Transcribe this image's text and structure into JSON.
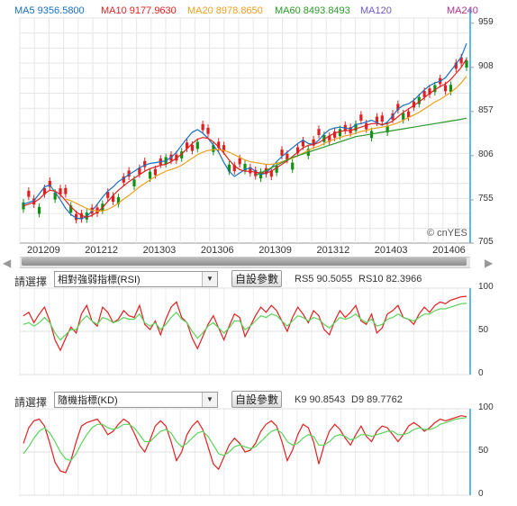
{
  "legend": [
    {
      "label": "MA5 9356.5800",
      "color": "#1a6fc0"
    },
    {
      "label": "MA10 9177.9630",
      "color": "#e02020"
    },
    {
      "label": "MA20 8978.8650",
      "color": "#f0a020"
    },
    {
      "label": "MA60 8493.8493",
      "color": "#2a9a2a"
    },
    {
      "label": "MA120",
      "color": "#6a5acd"
    },
    {
      "label": "MA240",
      "color": "#b03090"
    }
  ],
  "watermark": "© cnYES",
  "scroll": {
    "left_arrow": "◀",
    "right_arrow": "▶"
  },
  "panel1": {
    "label": "請選擇",
    "selected": "相對強弱指標(RSI)",
    "button": "自設參數",
    "value1": "RS5 90.5055",
    "value2": "RS10 82.3966"
  },
  "panel2": {
    "label": "請選擇",
    "selected": "隨機指標(KD)",
    "button": "自設參數",
    "value1": "K9 90.8543",
    "value2": "D9 89.7762"
  },
  "chart_data": [
    {
      "type": "candlestick",
      "y_ticks": [
        "959",
        "908",
        "857",
        "806",
        "755",
        "705"
      ],
      "ylim": [
        705,
        959
      ],
      "x_ticks": [
        "201209",
        "201212",
        "201303",
        "201306",
        "201309",
        "201312",
        "201403",
        "201406"
      ],
      "grid": true,
      "series": [
        {
          "name": "MA5",
          "values": [
            7500,
            7520,
            7540,
            7620,
            7700,
            7720,
            7640,
            7550,
            7450,
            7380,
            7340,
            7330,
            7360,
            7420,
            7500,
            7580,
            7650,
            7700,
            7760,
            7800,
            7840,
            7880,
            7920,
            7950,
            7970,
            7980,
            7990,
            8000,
            8040,
            8100,
            8180,
            8260,
            8330,
            8360,
            8320,
            8260,
            8180,
            8100,
            7980,
            7880,
            7820,
            7860,
            7900,
            7920,
            7880,
            7840,
            7860,
            7920,
            7990,
            8050,
            8100,
            8150,
            8200,
            8240,
            8200,
            8190,
            8240,
            8310,
            8360,
            8380,
            8390,
            8380,
            8370,
            8420,
            8430,
            8450,
            8470,
            8440,
            8410,
            8450,
            8520,
            8600,
            8640,
            8660,
            8700,
            8760,
            8820,
            8870,
            8900,
            8920,
            8960,
            9040,
            9120,
            9200,
            9356.58
          ]
        },
        {
          "name": "MA10",
          "values": [
            7480,
            7500,
            7520,
            7560,
            7620,
            7660,
            7650,
            7610,
            7540,
            7470,
            7410,
            7370,
            7350,
            7370,
            7410,
            7460,
            7530,
            7600,
            7660,
            7710,
            7760,
            7800,
            7840,
            7880,
            7910,
            7930,
            7950,
            7960,
            7990,
            8030,
            8080,
            8140,
            8200,
            8250,
            8270,
            8260,
            8220,
            8160,
            8090,
            8010,
            7940,
            7900,
            7880,
            7880,
            7870,
            7860,
            7860,
            7880,
            7920,
            7960,
            8000,
            8050,
            8100,
            8150,
            8180,
            8190,
            8210,
            8250,
            8290,
            8320,
            8340,
            8350,
            8350,
            8370,
            8390,
            8410,
            8430,
            8430,
            8420,
            8430,
            8460,
            8510,
            8560,
            8600,
            8640,
            8680,
            8730,
            8780,
            8820,
            8860,
            8890,
            8940,
            9010,
            9080,
            9177.96
          ]
        },
        {
          "name": "MA20",
          "values": [
            null,
            null,
            null,
            null,
            null,
            null,
            null,
            null,
            7560,
            7540,
            7510,
            7480,
            7450,
            7430,
            7420,
            7420,
            7440,
            7470,
            7510,
            7560,
            7600,
            7650,
            7700,
            7740,
            7780,
            7820,
            7850,
            7880,
            7900,
            7920,
            7950,
            7990,
            8030,
            8070,
            8100,
            8120,
            8130,
            8130,
            8120,
            8100,
            8070,
            8040,
            8010,
            7990,
            7980,
            7970,
            7960,
            7960,
            7970,
            7990,
            8010,
            8030,
            8060,
            8090,
            8120,
            8150,
            8170,
            8200,
            8230,
            8250,
            8270,
            8290,
            8300,
            8320,
            8340,
            8350,
            8370,
            8380,
            8390,
            8400,
            8420,
            8440,
            8470,
            8500,
            8530,
            8560,
            8600,
            8640,
            8680,
            8710,
            8750,
            8790,
            8840,
            8900,
            8978.87
          ]
        },
        {
          "name": "MA60",
          "values": [
            null,
            null,
            null,
            null,
            null,
            null,
            null,
            null,
            null,
            null,
            null,
            null,
            null,
            null,
            null,
            null,
            null,
            null,
            null,
            null,
            null,
            null,
            null,
            null,
            null,
            null,
            null,
            null,
            null,
            null,
            null,
            null,
            null,
            null,
            null,
            null,
            null,
            null,
            null,
            null,
            null,
            null,
            null,
            null,
            7830,
            7860,
            7890,
            7920,
            7950,
            7980,
            8010,
            8040,
            8060,
            8080,
            8100,
            8120,
            8140,
            8160,
            8180,
            8200,
            8220,
            8240,
            8260,
            8280,
            8290,
            8300,
            8310,
            8320,
            8330,
            8340,
            8350,
            8360,
            8370,
            8380,
            8390,
            8400,
            8410,
            8420,
            8430,
            8440,
            8450,
            8460,
            8470,
            8480,
            8493.85
          ]
        }
      ]
    },
    {
      "type": "line",
      "title": "RSI",
      "ylim": [
        0,
        100
      ],
      "y_ticks": [
        "100",
        "50",
        "0"
      ],
      "series": [
        {
          "name": "RS5",
          "values": [
            68,
            72,
            60,
            70,
            78,
            62,
            40,
            28,
            42,
            55,
            48,
            70,
            80,
            62,
            56,
            78,
            72,
            60,
            64,
            74,
            68,
            66,
            80,
            58,
            52,
            62,
            46,
            64,
            78,
            84,
            66,
            60,
            42,
            30,
            44,
            58,
            68,
            54,
            40,
            56,
            70,
            66,
            44,
            56,
            68,
            78,
            72,
            80,
            74,
            62,
            50,
            66,
            78,
            70,
            60,
            74,
            68,
            52,
            46,
            62,
            74,
            66,
            72,
            80,
            62,
            58,
            70,
            48,
            54,
            70,
            74,
            80,
            66,
            64,
            58,
            70,
            78,
            72,
            80,
            84,
            82,
            86,
            88,
            90,
            90.51
          ]
        },
        {
          "name": "RS10",
          "values": [
            58,
            60,
            56,
            60,
            66,
            60,
            48,
            40,
            46,
            52,
            52,
            62,
            68,
            62,
            58,
            66,
            64,
            60,
            62,
            66,
            64,
            64,
            70,
            60,
            56,
            60,
            52,
            58,
            66,
            72,
            64,
            60,
            50,
            42,
            48,
            56,
            60,
            54,
            48,
            54,
            62,
            62,
            52,
            56,
            62,
            68,
            66,
            70,
            68,
            62,
            56,
            62,
            68,
            66,
            62,
            66,
            64,
            58,
            54,
            60,
            66,
            64,
            66,
            70,
            64,
            60,
            64,
            56,
            58,
            64,
            66,
            70,
            66,
            64,
            62,
            66,
            70,
            70,
            74,
            76,
            76,
            78,
            80,
            82,
            82.4
          ]
        }
      ]
    },
    {
      "type": "line",
      "title": "KD",
      "ylim": [
        0,
        100
      ],
      "y_ticks": [
        "100",
        "50",
        "0"
      ],
      "series": [
        {
          "name": "K9",
          "values": [
            60,
            78,
            86,
            88,
            80,
            60,
            38,
            28,
            26,
            40,
            62,
            80,
            84,
            86,
            88,
            80,
            70,
            74,
            82,
            88,
            84,
            72,
            58,
            50,
            64,
            80,
            86,
            80,
            62,
            40,
            50,
            70,
            80,
            86,
            76,
            56,
            36,
            30,
            44,
            58,
            66,
            60,
            50,
            52,
            60,
            74,
            82,
            86,
            80,
            62,
            40,
            52,
            70,
            82,
            78,
            62,
            36,
            58,
            74,
            82,
            76,
            66,
            58,
            70,
            80,
            68,
            62,
            74,
            80,
            78,
            70,
            62,
            70,
            80,
            84,
            80,
            74,
            78,
            84,
            88,
            86,
            88,
            90,
            92,
            90.85
          ]
        },
        {
          "name": "D9",
          "values": [
            48,
            56,
            66,
            74,
            78,
            72,
            62,
            50,
            42,
            40,
            48,
            60,
            70,
            78,
            82,
            82,
            78,
            76,
            78,
            82,
            82,
            78,
            70,
            62,
            62,
            68,
            74,
            76,
            72,
            62,
            56,
            60,
            66,
            72,
            74,
            68,
            58,
            48,
            46,
            50,
            56,
            58,
            56,
            54,
            56,
            62,
            68,
            74,
            76,
            72,
            62,
            58,
            60,
            66,
            70,
            68,
            58,
            58,
            62,
            68,
            70,
            68,
            64,
            66,
            70,
            70,
            68,
            70,
            72,
            74,
            74,
            70,
            70,
            72,
            76,
            78,
            76,
            76,
            78,
            82,
            84,
            86,
            88,
            89,
            89.78
          ]
        }
      ]
    }
  ]
}
